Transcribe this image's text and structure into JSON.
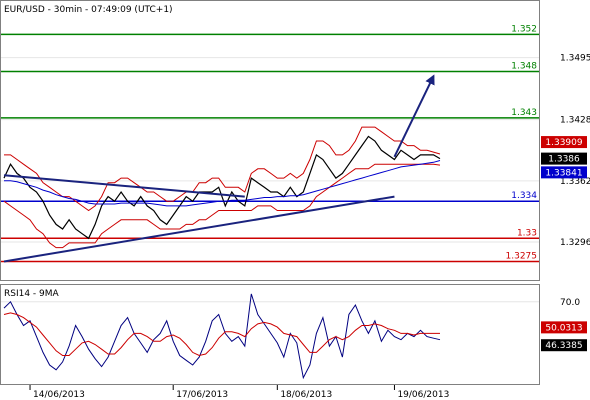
{
  "title": "EUR/USD - 30min - 07:49:09 (UTC+1)",
  "rsi_title": "RSI14 - 9MA",
  "chart_data": [
    {
      "type": "line",
      "panel": "price",
      "ylim": [
        1.3255,
        1.3555
      ],
      "price_axis_ticks": [
        "1.3495",
        "1.3428",
        "1.3362",
        "1.3296"
      ],
      "x_ticks": [
        "14/06/2013",
        "17/06/2013",
        "18/06/2013",
        "19/06/2013"
      ],
      "levels": [
        {
          "label": "1.352",
          "value": 1.352,
          "color": "#008000"
        },
        {
          "label": "1.348",
          "value": 1.348,
          "color": "#008000"
        },
        {
          "label": "1.343",
          "value": 1.343,
          "color": "#008000"
        },
        {
          "label": "1.334",
          "value": 1.334,
          "color": "#0000cc"
        },
        {
          "label": "1.33",
          "value": 1.33,
          "color": "#cc0000"
        },
        {
          "label": "1.3275",
          "value": 1.3275,
          "color": "#cc0000"
        }
      ],
      "price_tags": [
        {
          "label": "1.33909",
          "value": 1.33909,
          "color": "#cc0000"
        },
        {
          "label": "1.3386",
          "value": 1.3386,
          "color": "#000000"
        },
        {
          "label": "1.33841",
          "value": 1.33841,
          "color": "#0000cc"
        }
      ],
      "series": [
        {
          "color": "#000000",
          "values": [
            1.3365,
            1.338,
            1.337,
            1.3365,
            1.3355,
            1.335,
            1.334,
            1.3325,
            1.3315,
            1.331,
            1.332,
            1.331,
            1.3305,
            1.33,
            1.3315,
            1.3335,
            1.3345,
            1.334,
            1.335,
            1.334,
            1.3335,
            1.3345,
            1.3335,
            1.333,
            1.332,
            1.3315,
            1.3325,
            1.3335,
            1.3345,
            1.334,
            1.335,
            1.335,
            1.335,
            1.3355,
            1.3335,
            1.335,
            1.334,
            1.3335,
            1.3365,
            1.336,
            1.3355,
            1.335,
            1.335,
            1.3345,
            1.3355,
            1.3345,
            1.335,
            1.337,
            1.339,
            1.3385,
            1.3375,
            1.3365,
            1.337,
            1.338,
            1.339,
            1.34,
            1.341,
            1.3405,
            1.3395,
            1.339,
            1.3385,
            1.3395,
            1.339,
            1.3385,
            1.339,
            1.339,
            1.339,
            1.3386
          ]
        },
        {
          "color": "#cc0000",
          "values": [
            1.339,
            1.339,
            1.3385,
            1.338,
            1.3375,
            1.337,
            1.336,
            1.3355,
            1.335,
            1.3345,
            1.3345,
            1.334,
            1.3335,
            1.333,
            1.3335,
            1.3345,
            1.336,
            1.336,
            1.3365,
            1.3365,
            1.336,
            1.3355,
            1.335,
            1.335,
            1.3345,
            1.334,
            1.334,
            1.3345,
            1.335,
            1.335,
            1.336,
            1.336,
            1.3365,
            1.3365,
            1.3355,
            1.3355,
            1.3355,
            1.335,
            1.337,
            1.3375,
            1.3375,
            1.337,
            1.3365,
            1.3365,
            1.337,
            1.3365,
            1.337,
            1.3385,
            1.3405,
            1.3405,
            1.34,
            1.339,
            1.339,
            1.3395,
            1.3405,
            1.342,
            1.342,
            1.342,
            1.3415,
            1.341,
            1.3405,
            1.3405,
            1.34,
            1.34,
            1.3395,
            1.3395,
            1.3393,
            1.3391
          ]
        },
        {
          "color": "#cc0000",
          "values": [
            1.334,
            1.3335,
            1.333,
            1.3325,
            1.332,
            1.331,
            1.3305,
            1.3295,
            1.329,
            1.329,
            1.3295,
            1.3295,
            1.3295,
            1.3295,
            1.3295,
            1.3305,
            1.331,
            1.3315,
            1.332,
            1.332,
            1.332,
            1.332,
            1.332,
            1.3315,
            1.331,
            1.331,
            1.331,
            1.331,
            1.3315,
            1.3315,
            1.332,
            1.332,
            1.3325,
            1.333,
            1.333,
            1.333,
            1.333,
            1.333,
            1.333,
            1.3335,
            1.3335,
            1.3335,
            1.333,
            1.333,
            1.333,
            1.333,
            1.333,
            1.3335,
            1.3345,
            1.335,
            1.3355,
            1.336,
            1.3365,
            1.337,
            1.3375,
            1.3375,
            1.3375,
            1.338,
            1.338,
            1.338,
            1.338,
            1.338,
            1.338,
            1.338,
            1.338,
            1.338,
            1.338,
            1.3379
          ]
        },
        {
          "color": "#0000cc",
          "values": [
            1.3362,
            1.3362,
            1.3361,
            1.3359,
            1.3357,
            1.3355,
            1.3352,
            1.335,
            1.3347,
            1.3345,
            1.3343,
            1.3342,
            1.334,
            1.3338,
            1.3337,
            1.3337,
            1.3337,
            1.3337,
            1.3338,
            1.3338,
            1.3338,
            1.3338,
            1.3338,
            1.3337,
            1.3336,
            1.3335,
            1.3335,
            1.3335,
            1.3335,
            1.3336,
            1.3337,
            1.3338,
            1.3339,
            1.334,
            1.334,
            1.3341,
            1.3341,
            1.3341,
            1.3342,
            1.3343,
            1.3344,
            1.3344,
            1.3345,
            1.3345,
            1.3346,
            1.3346,
            1.3347,
            1.3349,
            1.3351,
            1.3353,
            1.3355,
            1.3357,
            1.3359,
            1.3361,
            1.3363,
            1.3365,
            1.3367,
            1.3369,
            1.3371,
            1.3373,
            1.3375,
            1.3377,
            1.3378,
            1.3379,
            1.338,
            1.3381,
            1.3382,
            1.3384
          ]
        }
      ],
      "trendlines": [
        {
          "color": "#1a237e",
          "points": [
            [
              0,
              1.3368
            ],
            [
              37,
              1.3345
            ]
          ]
        },
        {
          "color": "#1a237e",
          "points": [
            [
              0,
              1.3275
            ],
            [
              60,
              1.3345
            ]
          ]
        },
        {
          "color": "#1a237e",
          "arrow": true,
          "points": [
            [
              60,
              1.3388
            ],
            [
              66,
              1.3475
            ]
          ]
        }
      ]
    },
    {
      "type": "line",
      "panel": "rsi",
      "ylim": [
        18,
        80
      ],
      "ticks": [
        "70.0"
      ],
      "value_tags": [
        {
          "label": "50.0313",
          "value": 50.0313,
          "color": "#cc0000"
        },
        {
          "label": "46.3385",
          "value": 46.3385,
          "color": "#000000"
        }
      ],
      "series": [
        {
          "color": "#000080",
          "values": [
            66,
            70,
            62,
            55,
            58,
            48,
            38,
            30,
            27,
            32,
            42,
            55,
            48,
            40,
            34,
            29,
            35,
            45,
            55,
            60,
            50,
            44,
            38,
            46,
            50,
            58,
            45,
            36,
            33,
            30,
            35,
            45,
            58,
            62,
            50,
            45,
            48,
            42,
            75,
            62,
            56,
            50,
            44,
            35,
            50,
            44,
            22,
            30,
            50,
            60,
            42,
            48,
            35,
            62,
            68,
            58,
            50,
            58,
            45,
            52,
            48,
            46,
            50,
            48,
            52,
            48,
            47,
            46
          ]
        },
        {
          "color": "#cc0000",
          "values": [
            62,
            63,
            62,
            60,
            57,
            54,
            49,
            44,
            39,
            36,
            36,
            40,
            44,
            45,
            43,
            40,
            37,
            37,
            41,
            46,
            50,
            50,
            48,
            45,
            45,
            48,
            49,
            47,
            43,
            38,
            36,
            37,
            41,
            47,
            51,
            51,
            50,
            48,
            53,
            56,
            57,
            56,
            54,
            50,
            49,
            48,
            43,
            38,
            38,
            42,
            46,
            48,
            46,
            48,
            52,
            55,
            55,
            56,
            55,
            53,
            52,
            50,
            50,
            49,
            50,
            50,
            50,
            50
          ]
        }
      ]
    }
  ]
}
